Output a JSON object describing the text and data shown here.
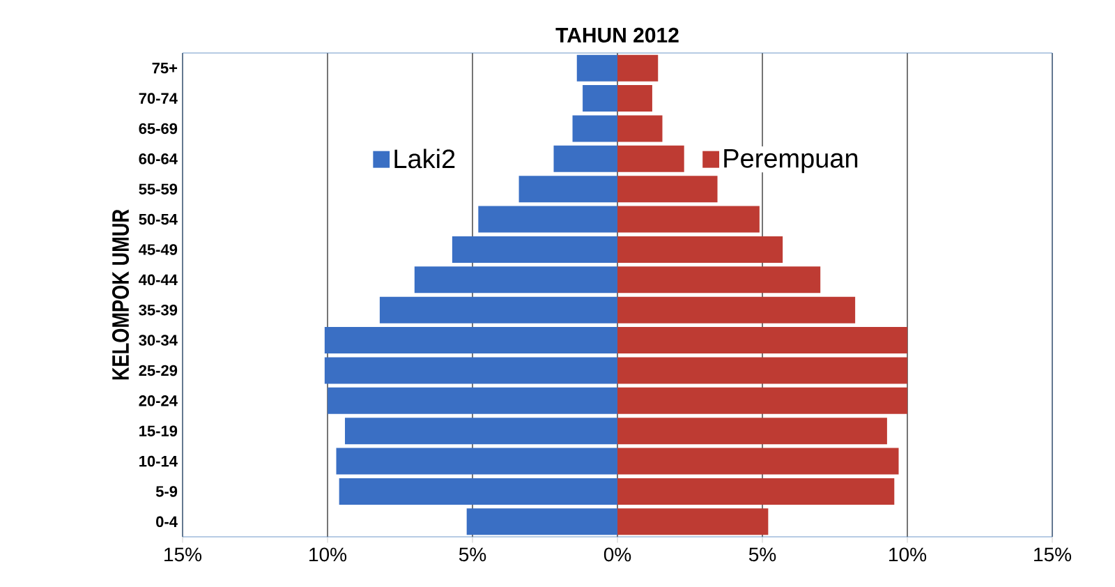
{
  "chart_data": {
    "type": "bar",
    "orientation": "horizontal",
    "title": "TAHUN 2012",
    "ylabel": "KELOMPOK UMUR",
    "categories": [
      "75+",
      "70-74",
      "65-69",
      "60-64",
      "55-59",
      "50-54",
      "45-49",
      "40-44",
      "35-39",
      "30-34",
      "25-29",
      "20-24",
      "15-19",
      "10-14",
      "5-9",
      "0-4"
    ],
    "series": [
      {
        "name": "Laki2",
        "color": "#3a6fc4",
        "values": [
          -1.4,
          -1.2,
          -1.55,
          -2.2,
          -3.4,
          -4.8,
          -5.7,
          -7.0,
          -8.2,
          -10.1,
          -10.1,
          -10.0,
          -9.4,
          -9.7,
          -9.6,
          -5.2
        ]
      },
      {
        "name": "Perempuan",
        "color": "#be3b33",
        "values": [
          1.4,
          1.2,
          1.55,
          2.3,
          3.45,
          4.9,
          5.7,
          7.0,
          8.2,
          10.0,
          10.0,
          10.0,
          9.3,
          9.7,
          9.55,
          5.2
        ]
      }
    ],
    "xlim": [
      -15,
      15
    ],
    "xticks": [
      {
        "value": -15,
        "label": "15%"
      },
      {
        "value": -10,
        "label": "10%"
      },
      {
        "value": -5,
        "label": "5%"
      },
      {
        "value": 0,
        "label": "0%"
      },
      {
        "value": 5,
        "label": "5%"
      },
      {
        "value": 10,
        "label": "10%"
      },
      {
        "value": 15,
        "label": "15%"
      }
    ],
    "grid": "x",
    "legend": "top",
    "stacked": true
  }
}
